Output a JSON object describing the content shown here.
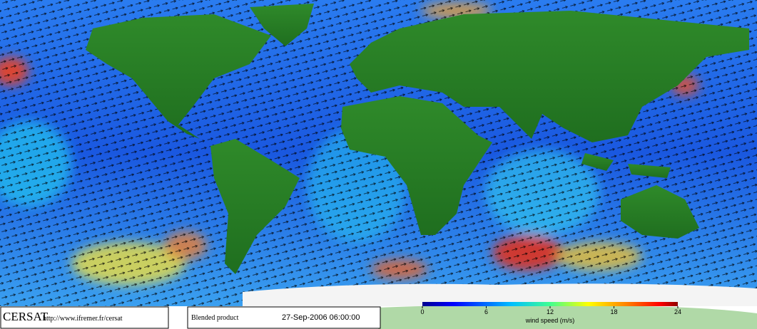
{
  "credit": {
    "name": "CERSAT",
    "url": "http://www.ifremer.fr/cersat"
  },
  "product": {
    "label": "Blended product",
    "date": "27-Sep-2006 06:00:00"
  },
  "colorbar": {
    "lim": [
      0,
      24
    ],
    "ticks": [
      0,
      6,
      12,
      18,
      24
    ],
    "label": "wind speed (m/s)"
  }
}
